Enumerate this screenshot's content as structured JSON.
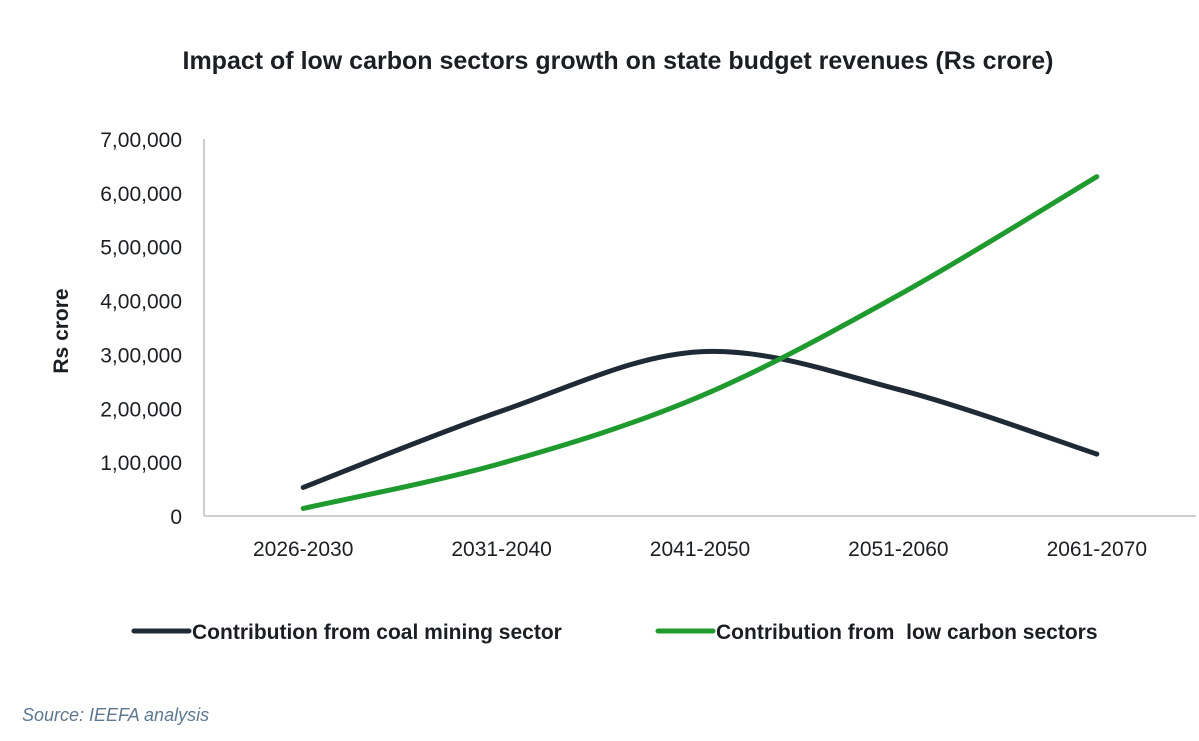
{
  "chart_data": {
    "type": "line",
    "title": "Impact of low carbon sectors growth on state budget revenues (Rs crore)",
    "xlabel": "",
    "ylabel": "Rs crore",
    "categories": [
      "2026-2030",
      "2031-2040",
      "2041-2050",
      "2051-2060",
      "2061-2070"
    ],
    "ylim": [
      0,
      700000
    ],
    "yticks": [
      0,
      100000,
      200000,
      300000,
      400000,
      500000,
      600000,
      700000
    ],
    "ytick_labels": [
      "0",
      "1,00,000",
      "2,00,000",
      "3,00,000",
      "4,00,000",
      "5,00,000",
      "6,00,000",
      "7,00,000"
    ],
    "grid": false,
    "legend_position": "bottom",
    "series": [
      {
        "name": "Contribution from coal mining sector",
        "color": "#1e2a35",
        "values": [
          53000,
          195000,
          305000,
          235000,
          115000
        ]
      },
      {
        "name": "Contribution from  low carbon sectors",
        "color": "#1f9a2e",
        "values": [
          14000,
          98000,
          222000,
          410000,
          630000
        ]
      }
    ]
  },
  "source": "Source: IEEFA analysis"
}
